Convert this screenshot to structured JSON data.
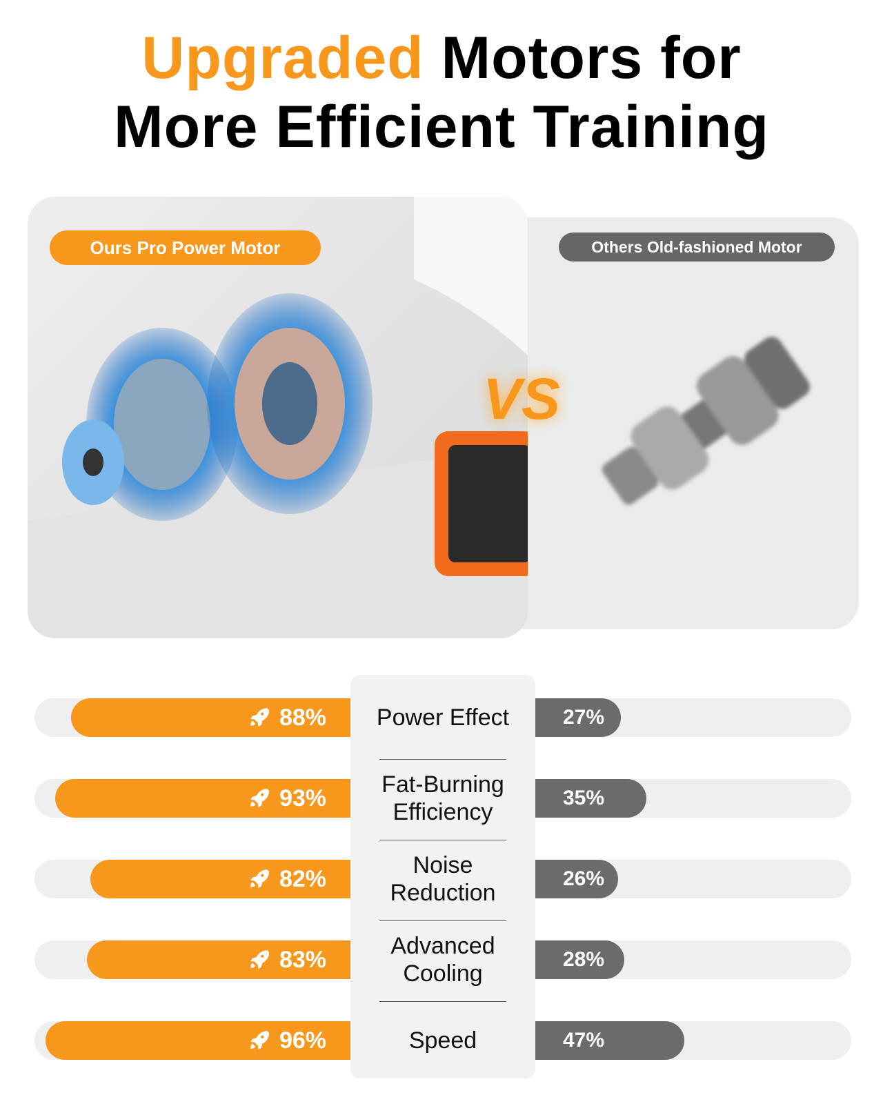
{
  "title": {
    "highlight": "Upgraded",
    "line1_rest": "Motors for",
    "line2": "More Efficient Training"
  },
  "vs_label": "VS",
  "chart_data": {
    "type": "bar",
    "categories": [
      "Power Effect",
      "Fat-Burning Efficiency",
      "Noise Reduction",
      "Advanced Cooling",
      "Speed"
    ],
    "series": [
      {
        "name": "Ours Pro Power Motor",
        "color": "#f7981d",
        "values": [
          88,
          93,
          82,
          83,
          96
        ],
        "value_labels": [
          "88%",
          "93%",
          "82%",
          "83%",
          "96%"
        ]
      },
      {
        "name": "Others Old-fashioned Motor",
        "color": "#6b6b6b",
        "values": [
          27,
          35,
          26,
          28,
          47
        ],
        "value_labels": [
          "27%",
          "35%",
          "26%",
          "28%",
          "47%"
        ]
      }
    ]
  }
}
